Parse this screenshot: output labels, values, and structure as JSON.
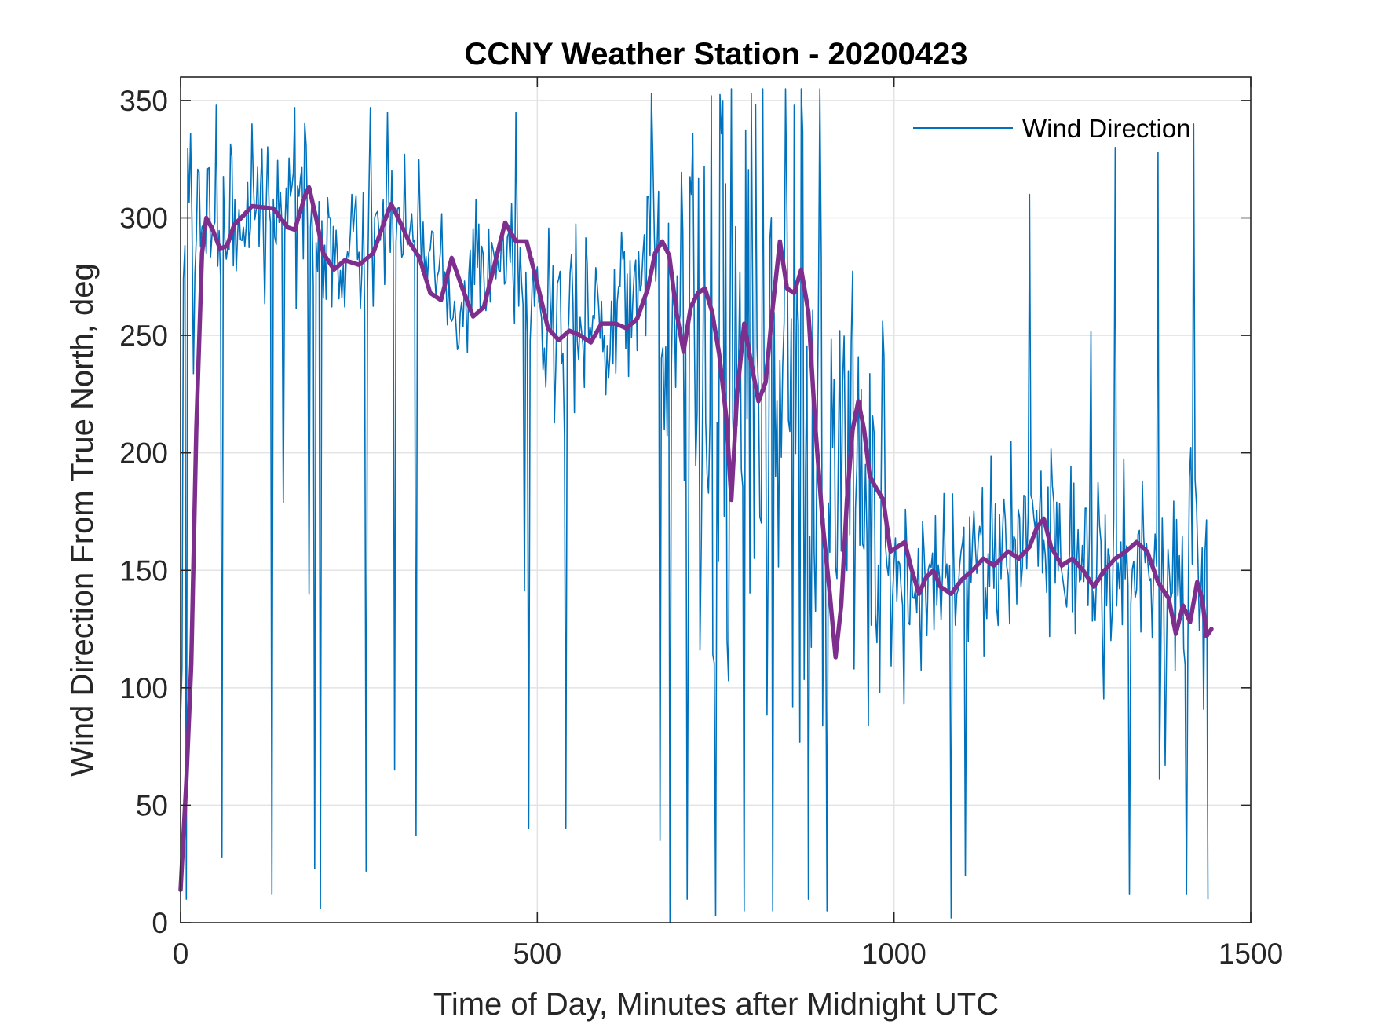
{
  "chart_data": {
    "type": "line",
    "title": "CCNY Weather Station - 20200423",
    "xlabel": "Time of Day, Minutes after Midnight UTC",
    "ylabel": "Wind Direction From True North, deg",
    "xlim": [
      0,
      1500
    ],
    "ylim": [
      0,
      360
    ],
    "x_ticks": [
      0,
      500,
      1000,
      1500
    ],
    "y_ticks": [
      0,
      50,
      100,
      150,
      200,
      250,
      300,
      350
    ],
    "grid": true,
    "legend": {
      "position": "top-right",
      "entries": [
        "Wind Direction"
      ]
    },
    "series": [
      {
        "name": "Wind Direction",
        "color": "#0072BD",
        "line_width": "thin",
        "note_sampling": "1-minute raw data, highly variable",
        "keypoints": [
          [
            0,
            20
          ],
          [
            5,
            310
          ],
          [
            10,
            320
          ],
          [
            20,
            300
          ],
          [
            40,
            305
          ],
          [
            60,
            295
          ],
          [
            100,
            300
          ],
          [
            150,
            300
          ],
          [
            180,
            305
          ],
          [
            200,
            285
          ],
          [
            250,
            285
          ],
          [
            290,
            300
          ],
          [
            330,
            285
          ],
          [
            360,
            270
          ],
          [
            400,
            265
          ],
          [
            450,
            285
          ],
          [
            490,
            280
          ],
          [
            520,
            255
          ],
          [
            550,
            250
          ],
          [
            600,
            255
          ],
          [
            640,
            270
          ],
          [
            680,
            270
          ],
          [
            720,
            255
          ],
          [
            760,
            240
          ],
          [
            800,
            235
          ],
          [
            850,
            240
          ],
          [
            880,
            220
          ],
          [
            900,
            160
          ],
          [
            930,
            200
          ],
          [
            960,
            190
          ],
          [
            980,
            160
          ],
          [
            1020,
            150
          ],
          [
            1060,
            145
          ],
          [
            1100,
            150
          ],
          [
            1150,
            158
          ],
          [
            1200,
            168
          ],
          [
            1250,
            150
          ],
          [
            1300,
            150
          ],
          [
            1350,
            155
          ],
          [
            1400,
            135
          ],
          [
            1440,
            125
          ]
        ],
        "outlier_drops": [
          [
            8,
            10
          ],
          [
            27,
            5
          ],
          [
            58,
            28
          ],
          [
            128,
            12
          ],
          [
            188,
            23
          ],
          [
            196,
            6
          ],
          [
            260,
            22
          ],
          [
            300,
            65
          ],
          [
            330,
            37
          ],
          [
            488,
            40
          ],
          [
            540,
            40
          ],
          [
            672,
            35
          ],
          [
            686,
            0
          ],
          [
            710,
            10
          ],
          [
            750,
            3
          ],
          [
            790,
            5
          ],
          [
            830,
            5
          ],
          [
            880,
            10
          ],
          [
            906,
            5
          ],
          [
            1080,
            2
          ],
          [
            1100,
            20
          ],
          [
            1330,
            12
          ],
          [
            1410,
            12
          ],
          [
            1425,
            1
          ],
          [
            1440,
            10
          ]
        ],
        "outlier_spikes": [
          [
            25,
            343
          ],
          [
            50,
            348
          ],
          [
            100,
            340
          ],
          [
            160,
            347
          ],
          [
            266,
            347
          ],
          [
            290,
            345
          ],
          [
            470,
            345
          ],
          [
            660,
            353
          ],
          [
            760,
            350
          ],
          [
            800,
            353
          ],
          [
            860,
            348
          ],
          [
            896,
            355
          ],
          [
            1190,
            310
          ],
          [
            1310,
            330
          ],
          [
            1370,
            328
          ],
          [
            1410,
            340
          ],
          [
            1420,
            340
          ],
          [
            1440,
            327
          ]
        ]
      },
      {
        "name": "",
        "color": "#7E2F8E",
        "line_width": "thick",
        "values_xy": [
          [
            0,
            14
          ],
          [
            8,
            60
          ],
          [
            15,
            110
          ],
          [
            22,
            210
          ],
          [
            30,
            285
          ],
          [
            36,
            300
          ],
          [
            45,
            295
          ],
          [
            55,
            287
          ],
          [
            65,
            288
          ],
          [
            75,
            297
          ],
          [
            85,
            300
          ],
          [
            100,
            305
          ],
          [
            130,
            304
          ],
          [
            150,
            296
          ],
          [
            160,
            295
          ],
          [
            175,
            310
          ],
          [
            180,
            313
          ],
          [
            190,
            300
          ],
          [
            200,
            285
          ],
          [
            215,
            278
          ],
          [
            230,
            282
          ],
          [
            250,
            280
          ],
          [
            270,
            285
          ],
          [
            285,
            298
          ],
          [
            295,
            306
          ],
          [
            305,
            300
          ],
          [
            320,
            290
          ],
          [
            335,
            283
          ],
          [
            350,
            268
          ],
          [
            365,
            265
          ],
          [
            380,
            283
          ],
          [
            395,
            270
          ],
          [
            410,
            258
          ],
          [
            425,
            262
          ],
          [
            440,
            280
          ],
          [
            455,
            298
          ],
          [
            470,
            290
          ],
          [
            485,
            290
          ],
          [
            500,
            272
          ],
          [
            515,
            253
          ],
          [
            530,
            248
          ],
          [
            545,
            252
          ],
          [
            560,
            250
          ],
          [
            575,
            247
          ],
          [
            590,
            255
          ],
          [
            610,
            255
          ],
          [
            625,
            253
          ],
          [
            640,
            257
          ],
          [
            655,
            270
          ],
          [
            665,
            285
          ],
          [
            675,
            290
          ],
          [
            685,
            284
          ],
          [
            695,
            260
          ],
          [
            705,
            243
          ],
          [
            715,
            262
          ],
          [
            725,
            268
          ],
          [
            735,
            270
          ],
          [
            745,
            260
          ],
          [
            755,
            242
          ],
          [
            765,
            215
          ],
          [
            772,
            180
          ],
          [
            780,
            225
          ],
          [
            790,
            255
          ],
          [
            800,
            238
          ],
          [
            810,
            222
          ],
          [
            820,
            230
          ],
          [
            830,
            262
          ],
          [
            840,
            290
          ],
          [
            850,
            270
          ],
          [
            860,
            268
          ],
          [
            870,
            278
          ],
          [
            880,
            260
          ],
          [
            890,
            210
          ],
          [
            900,
            170
          ],
          [
            910,
            140
          ],
          [
            918,
            113
          ],
          [
            926,
            135
          ],
          [
            934,
            180
          ],
          [
            942,
            210
          ],
          [
            950,
            222
          ],
          [
            958,
            210
          ],
          [
            966,
            190
          ],
          [
            975,
            185
          ],
          [
            985,
            180
          ],
          [
            995,
            158
          ],
          [
            1005,
            160
          ],
          [
            1015,
            162
          ],
          [
            1025,
            150
          ],
          [
            1035,
            140
          ],
          [
            1045,
            147
          ],
          [
            1055,
            150
          ],
          [
            1065,
            143
          ],
          [
            1080,
            140
          ],
          [
            1095,
            146
          ],
          [
            1110,
            150
          ],
          [
            1125,
            155
          ],
          [
            1140,
            152
          ],
          [
            1160,
            158
          ],
          [
            1175,
            155
          ],
          [
            1190,
            160
          ],
          [
            1200,
            168
          ],
          [
            1210,
            172
          ],
          [
            1220,
            160
          ],
          [
            1235,
            152
          ],
          [
            1250,
            155
          ],
          [
            1265,
            150
          ],
          [
            1280,
            143
          ],
          [
            1295,
            150
          ],
          [
            1310,
            155
          ],
          [
            1325,
            158
          ],
          [
            1340,
            162
          ],
          [
            1355,
            158
          ],
          [
            1370,
            145
          ],
          [
            1385,
            138
          ],
          [
            1395,
            123
          ],
          [
            1405,
            135
          ],
          [
            1415,
            128
          ],
          [
            1425,
            145
          ],
          [
            1432,
            138
          ],
          [
            1438,
            122
          ],
          [
            1445,
            125
          ]
        ]
      }
    ]
  }
}
